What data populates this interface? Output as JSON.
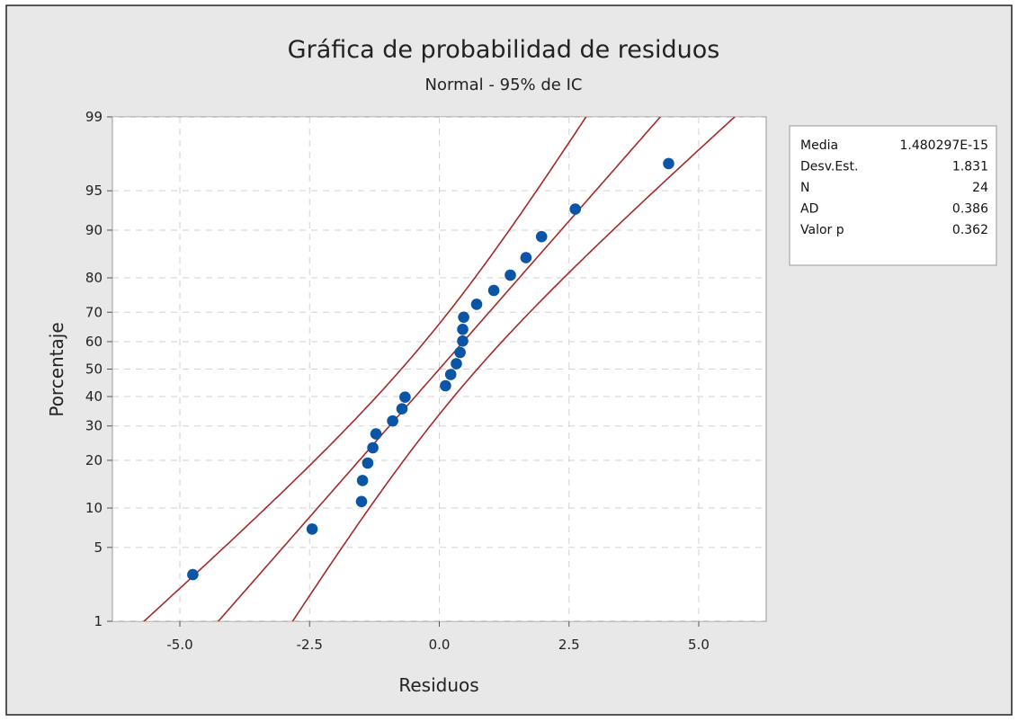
{
  "chart_data": {
    "type": "scatter",
    "title": "Gráfica de probabilidad de residuos",
    "subtitle": "Normal - 95% de IC",
    "xlabel": "Residuos",
    "ylabel": "Porcentaje",
    "xlim": [
      -6.3,
      6.3
    ],
    "ylim_percent": [
      1,
      99
    ],
    "y_scale": "normal-probability",
    "grid": true,
    "x_ticks": [
      -5.0,
      -2.5,
      0.0,
      2.5,
      5.0
    ],
    "x_tick_labels": [
      "-5.0",
      "-2.5",
      "0.0",
      "2.5",
      "5.0"
    ],
    "y_ticks": [
      1,
      5,
      10,
      20,
      30,
      40,
      50,
      60,
      70,
      80,
      90,
      95,
      99
    ],
    "y_tick_labels": [
      "1",
      "5",
      "10",
      "20",
      "30",
      "40",
      "50",
      "60",
      "70",
      "80",
      "90",
      "95",
      "99"
    ],
    "points": [
      {
        "x": -4.75,
        "y": 2.9
      },
      {
        "x": -2.45,
        "y": 7.0
      },
      {
        "x": -1.5,
        "y": 11.1
      },
      {
        "x": -1.48,
        "y": 15.2
      },
      {
        "x": -1.38,
        "y": 19.3
      },
      {
        "x": -1.28,
        "y": 23.4
      },
      {
        "x": -1.22,
        "y": 27.5
      },
      {
        "x": -0.9,
        "y": 31.6
      },
      {
        "x": -0.72,
        "y": 35.7
      },
      {
        "x": -0.66,
        "y": 39.8
      },
      {
        "x": 0.12,
        "y": 43.9
      },
      {
        "x": 0.22,
        "y": 48.0
      },
      {
        "x": 0.33,
        "y": 52.0
      },
      {
        "x": 0.4,
        "y": 56.1
      },
      {
        "x": 0.45,
        "y": 60.2
      },
      {
        "x": 0.45,
        "y": 64.3
      },
      {
        "x": 0.47,
        "y": 68.4
      },
      {
        "x": 0.72,
        "y": 72.5
      },
      {
        "x": 1.05,
        "y": 76.6
      },
      {
        "x": 1.37,
        "y": 80.7
      },
      {
        "x": 1.67,
        "y": 84.8
      },
      {
        "x": 1.97,
        "y": 88.9
      },
      {
        "x": 2.62,
        "y": 93.0
      },
      {
        "x": 4.42,
        "y": 97.1
      }
    ],
    "fit": {
      "mean": 0,
      "sd": 1.831
    },
    "confidence_level": 0.95,
    "stats": [
      {
        "label": "Media",
        "value": "1.480297E-15"
      },
      {
        "label": "Desv.Est.",
        "value": "1.831"
      },
      {
        "label": "N",
        "value": "24"
      },
      {
        "label": "AD",
        "value": "0.386"
      },
      {
        "label": "Valor p",
        "value": "0.362"
      }
    ],
    "colors": {
      "background": "#e8e8e8",
      "plot_area": "#ffffff",
      "point": "#0a55a5",
      "line": "#a32a2a",
      "grid": "#d2d2d2"
    }
  }
}
